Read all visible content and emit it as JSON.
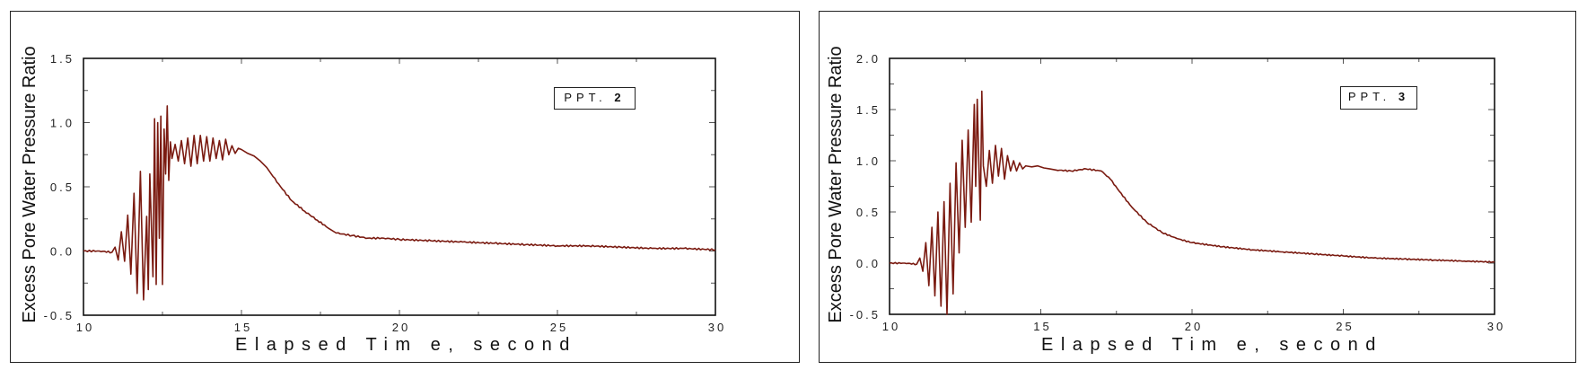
{
  "chart_data": [
    {
      "type": "line",
      "title": "",
      "annotation_prefix": "PPT. ",
      "annotation_number": "2",
      "xlabel": "Elapsed Tim e, second",
      "ylabel": "Excess Pore Water Pressure Ratio",
      "xlim": [
        10,
        30
      ],
      "ylim": [
        -0.5,
        1.5
      ],
      "xticks": [
        "10",
        "15",
        "20",
        "25",
        "30"
      ],
      "yticks": [
        "1.5",
        "1.0",
        "0.5",
        "0.0",
        "-0.5"
      ],
      "grid": false,
      "line_color": "#7a1a10",
      "series": [
        {
          "name": "PPT. 2",
          "x": [
            10.0,
            10.5,
            10.9,
            11.0,
            11.1,
            11.2,
            11.3,
            11.4,
            11.5,
            11.6,
            11.7,
            11.8,
            11.9,
            12.0,
            12.05,
            12.1,
            12.2,
            12.25,
            12.3,
            12.35,
            12.4,
            12.45,
            12.5,
            12.55,
            12.6,
            12.65,
            12.7,
            12.75,
            12.8,
            12.9,
            13.0,
            13.1,
            13.2,
            13.3,
            13.4,
            13.5,
            13.6,
            13.7,
            13.8,
            13.9,
            14.0,
            14.1,
            14.2,
            14.3,
            14.4,
            14.5,
            14.6,
            14.7,
            14.8,
            14.9,
            15.0,
            15.2,
            15.4,
            15.6,
            15.8,
            16.0,
            16.3,
            16.6,
            17.0,
            17.4,
            17.8,
            18.0,
            18.5,
            19.0,
            19.5,
            20.0,
            21.0,
            22.0,
            23.0,
            24.0,
            25.0,
            26.0,
            27.0,
            28.0,
            29.0,
            30.0
          ],
          "y": [
            0.0,
            0.0,
            -0.01,
            0.03,
            -0.07,
            0.15,
            -0.08,
            0.28,
            -0.18,
            0.45,
            -0.33,
            0.62,
            -0.38,
            0.27,
            -0.3,
            0.6,
            -0.2,
            1.03,
            -0.26,
            1.0,
            0.1,
            1.05,
            -0.26,
            0.95,
            0.6,
            1.13,
            0.55,
            0.85,
            0.72,
            0.83,
            0.7,
            0.86,
            0.68,
            0.88,
            0.66,
            0.9,
            0.68,
            0.9,
            0.7,
            0.89,
            0.7,
            0.88,
            0.72,
            0.86,
            0.71,
            0.87,
            0.75,
            0.82,
            0.76,
            0.8,
            0.79,
            0.76,
            0.74,
            0.7,
            0.65,
            0.58,
            0.48,
            0.39,
            0.31,
            0.24,
            0.17,
            0.14,
            0.12,
            0.1,
            0.1,
            0.09,
            0.08,
            0.07,
            0.06,
            0.05,
            0.04,
            0.04,
            0.03,
            0.02,
            0.02,
            0.01
          ]
        }
      ]
    },
    {
      "type": "line",
      "title": "",
      "annotation_prefix": "PPT. ",
      "annotation_number": "3",
      "xlabel": "Elapsed Tim e, second",
      "ylabel": "Excess Pore Water Pressure Ratio",
      "xlim": [
        10,
        30
      ],
      "ylim": [
        -0.5,
        2.0
      ],
      "xticks": [
        "10",
        "15",
        "20",
        "25",
        "30"
      ],
      "yticks": [
        "2.0",
        "1.5",
        "1.0",
        "0.5",
        "0.0",
        "-0.5"
      ],
      "grid": false,
      "line_color": "#7a1a10",
      "series": [
        {
          "name": "PPT. 3",
          "x": [
            10.0,
            10.5,
            10.9,
            11.0,
            11.1,
            11.2,
            11.3,
            11.4,
            11.5,
            11.6,
            11.7,
            11.8,
            11.9,
            12.0,
            12.1,
            12.2,
            12.3,
            12.4,
            12.5,
            12.6,
            12.7,
            12.8,
            12.85,
            12.9,
            13.0,
            13.05,
            13.1,
            13.2,
            13.3,
            13.4,
            13.5,
            13.6,
            13.7,
            13.8,
            13.9,
            14.0,
            14.1,
            14.2,
            14.3,
            14.4,
            14.5,
            14.7,
            14.9,
            15.1,
            15.3,
            15.5,
            16.0,
            16.5,
            17.0,
            17.3,
            17.6,
            18.0,
            18.5,
            19.0,
            19.5,
            20.0,
            21.0,
            22.0,
            23.0,
            24.0,
            25.0,
            26.0,
            27.0,
            28.0,
            29.0,
            30.0
          ],
          "y": [
            0.0,
            0.0,
            -0.01,
            0.05,
            -0.08,
            0.2,
            -0.22,
            0.35,
            -0.32,
            0.5,
            -0.42,
            0.6,
            -0.5,
            0.78,
            -0.3,
            0.98,
            0.1,
            1.2,
            0.35,
            1.3,
            0.4,
            1.55,
            0.75,
            1.6,
            0.42,
            1.68,
            0.95,
            0.75,
            1.1,
            0.78,
            1.15,
            0.85,
            1.12,
            0.82,
            1.05,
            0.9,
            1.0,
            0.9,
            0.98,
            0.92,
            0.95,
            0.94,
            0.95,
            0.93,
            0.92,
            0.91,
            0.9,
            0.92,
            0.9,
            0.82,
            0.7,
            0.55,
            0.4,
            0.3,
            0.24,
            0.2,
            0.16,
            0.13,
            0.11,
            0.09,
            0.07,
            0.05,
            0.04,
            0.03,
            0.02,
            0.01
          ]
        }
      ]
    }
  ]
}
